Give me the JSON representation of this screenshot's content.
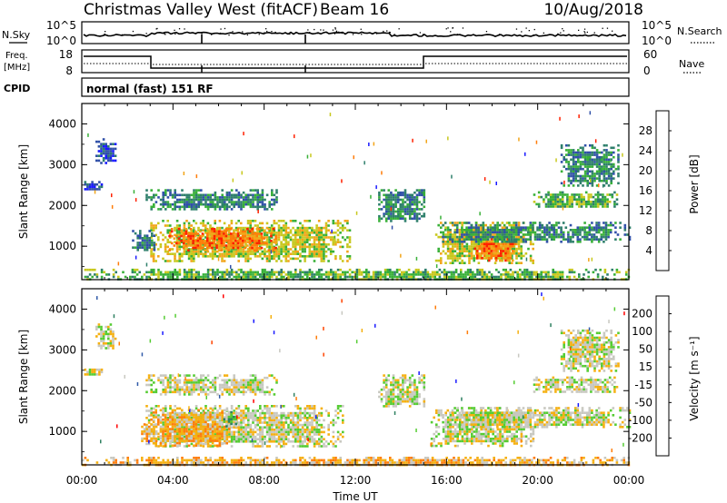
{
  "header": {
    "site": "Christmas Valley West (fitACF)",
    "beam": "Beam 16",
    "date": "10/Aug/2018"
  },
  "left_labels": {
    "nsky": "N.Sky",
    "freq_line1": "Freq.",
    "freq_line2": "[MHz]",
    "cpid": "CPID"
  },
  "right_labels": {
    "nsearch": "N.Search",
    "nave": "Nave"
  },
  "noise_panel": {
    "ticks": [
      "10^5",
      "10^0"
    ]
  },
  "freq_panel": {
    "left_ticks": [
      "18",
      "8"
    ],
    "right_ticks": [
      "60",
      "0"
    ]
  },
  "cpid_panel": {
    "text": "normal (fast) 151 RF"
  },
  "chart_data": [
    {
      "type": "heatmap",
      "name": "Power",
      "ylabel": "Slant Range [km]",
      "ylim": [
        180,
        4500
      ],
      "yticks": [
        "1000",
        "2000",
        "3000",
        "4000"
      ],
      "colorbar_label": "Power [dB]",
      "colorbar_ticks": [
        "4",
        "8",
        "12",
        "16",
        "20",
        "24",
        "28"
      ],
      "colorbar_colors": [
        "#1a1aff",
        "#3050a8",
        "#2e7f6b",
        "#38b038",
        "#c8c81e",
        "#f2a51a",
        "#ff7d0a",
        "#ff2000"
      ],
      "echo_regions": [
        {
          "t0": 0.6,
          "t1": 1.5,
          "r0": 3050,
          "r1": 3650,
          "level": 1
        },
        {
          "t0": 0.1,
          "t1": 0.9,
          "r0": 2400,
          "r1": 2600,
          "level": 1
        },
        {
          "t0": 2.8,
          "t1": 8.6,
          "r0": 1900,
          "r1": 2400,
          "level": 2
        },
        {
          "t0": 3.0,
          "t1": 11.8,
          "r0": 620,
          "r1": 1650,
          "level": 4
        },
        {
          "t0": 3.8,
          "t1": 8.5,
          "r0": 900,
          "r1": 1450,
          "level": 6
        },
        {
          "t0": 2.2,
          "t1": 3.2,
          "r0": 900,
          "r1": 1400,
          "level": 2
        },
        {
          "t0": 13.0,
          "t1": 15.0,
          "r0": 1600,
          "r1": 2400,
          "level": 2
        },
        {
          "t0": 15.5,
          "t1": 19.8,
          "r0": 600,
          "r1": 1600,
          "level": 4
        },
        {
          "t0": 17.2,
          "t1": 19.0,
          "r0": 650,
          "r1": 1200,
          "level": 6
        },
        {
          "t0": 15.8,
          "t1": 24.0,
          "r0": 1100,
          "r1": 1600,
          "level": 2
        },
        {
          "t0": 19.8,
          "t1": 23.5,
          "r0": 1950,
          "r1": 2350,
          "level": 3
        },
        {
          "t0": 21.0,
          "t1": 23.5,
          "r0": 2500,
          "r1": 3500,
          "level": 2
        },
        {
          "t0": 0.0,
          "t1": 24.0,
          "r0": 180,
          "r1": 450,
          "level": 3
        }
      ]
    },
    {
      "type": "heatmap",
      "name": "Velocity",
      "ylabel": "Slant Range [km]",
      "ylim": [
        180,
        4500
      ],
      "yticks": [
        "1000",
        "2000",
        "3000",
        "4000"
      ],
      "colorbar_label": "Velocity [m s⁻¹]",
      "colorbar_ticks": [
        "200",
        "100",
        "50",
        "15",
        "-15",
        "-50",
        "-100",
        "-200"
      ],
      "colorbar_colors": [
        "#1a1aff",
        "#305aa8",
        "#2e8060",
        "#55cc33",
        "#c8c8c0",
        "#f5b010",
        "#ff7d0a",
        "#ff4400",
        "#ff0000"
      ],
      "echo_regions": [
        {
          "t0": 0.6,
          "t1": 1.5,
          "r0": 3050,
          "r1": 3650,
          "level": 4
        },
        {
          "t0": 0.1,
          "t1": 0.9,
          "r0": 2400,
          "r1": 2600,
          "level": 4
        },
        {
          "t0": 2.8,
          "t1": 8.6,
          "r0": 1900,
          "r1": 2400,
          "level": 4
        },
        {
          "t0": 2.8,
          "t1": 11.5,
          "r0": 650,
          "r1": 1650,
          "level": 4
        },
        {
          "t0": 3.0,
          "t1": 6.5,
          "r0": 650,
          "r1": 1550,
          "level": 5
        },
        {
          "t0": 2.6,
          "t1": 3.3,
          "r0": 700,
          "r1": 1200,
          "level": 5
        },
        {
          "t0": 6.2,
          "t1": 6.8,
          "r0": 1100,
          "r1": 1500,
          "level": 3
        },
        {
          "t0": 13.0,
          "t1": 15.0,
          "r0": 1600,
          "r1": 2400,
          "level": 4
        },
        {
          "t0": 15.3,
          "t1": 19.8,
          "r0": 650,
          "r1": 1600,
          "level": 4
        },
        {
          "t0": 15.8,
          "t1": 24.0,
          "r0": 1100,
          "r1": 1600,
          "level": 4
        },
        {
          "t0": 19.8,
          "t1": 23.5,
          "r0": 1950,
          "r1": 2350,
          "level": 4
        },
        {
          "t0": 21.0,
          "t1": 23.5,
          "r0": 2500,
          "r1": 3500,
          "level": 4
        },
        {
          "t0": 0.0,
          "t1": 24.0,
          "r0": 180,
          "r1": 380,
          "level": 5
        }
      ]
    }
  ],
  "xaxis": {
    "label": "Time UT",
    "xlim": [
      0,
      24
    ],
    "ticks": [
      "00:00",
      "04:00",
      "08:00",
      "12:00",
      "16:00",
      "20:00",
      "00:00"
    ]
  }
}
